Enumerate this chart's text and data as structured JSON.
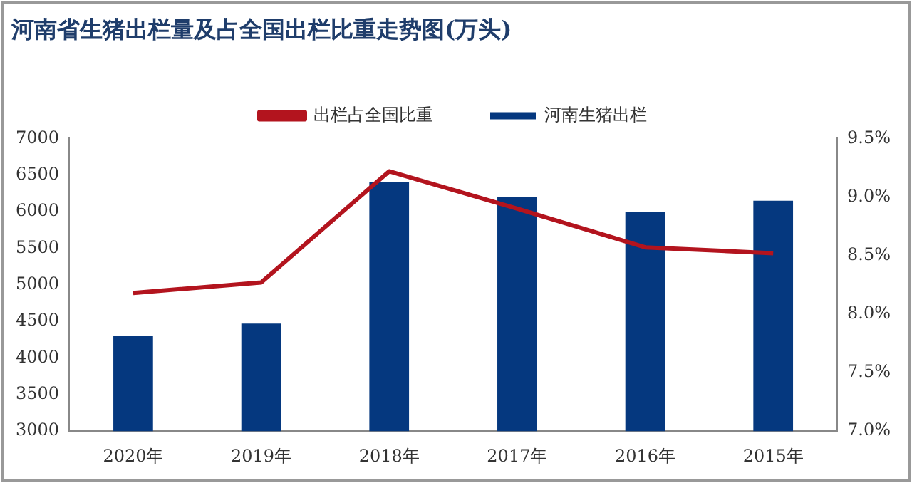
{
  "chart_data": {
    "type": "bar",
    "title": "河南省生猪出栏量及占全国出栏比重走势图(万头)",
    "categories": [
      "2020年",
      "2019年",
      "2018年",
      "2017年",
      "2016年",
      "2015年"
    ],
    "series": [
      {
        "name": "河南生猪出栏",
        "color": "#05387f",
        "values": [
          4300,
          4470,
          6400,
          6200,
          6000,
          6150
        ]
      },
      {
        "name": "出栏占全国比重",
        "type": "line",
        "axis": "y2",
        "color": "#b3141e",
        "values": [
          8.18,
          8.27,
          9.22,
          8.9,
          8.57,
          8.52
        ]
      }
    ],
    "ylim": [
      3000,
      7000
    ],
    "yticks": [
      3000,
      3500,
      4000,
      4500,
      5000,
      5500,
      6000,
      6500,
      7000
    ],
    "y2lim": [
      7,
      9.5
    ],
    "y2ticks": [
      {
        "value": 7,
        "label": "7.0%"
      },
      {
        "value": 7.5,
        "label": "7.5%"
      },
      {
        "value": 8,
        "label": "8.0%"
      },
      {
        "value": 8.5,
        "label": "8.5%"
      },
      {
        "value": 9,
        "label": "9.0%"
      },
      {
        "value": 9.5,
        "label": "9.5%"
      }
    ],
    "legend": "top",
    "grid": false
  }
}
